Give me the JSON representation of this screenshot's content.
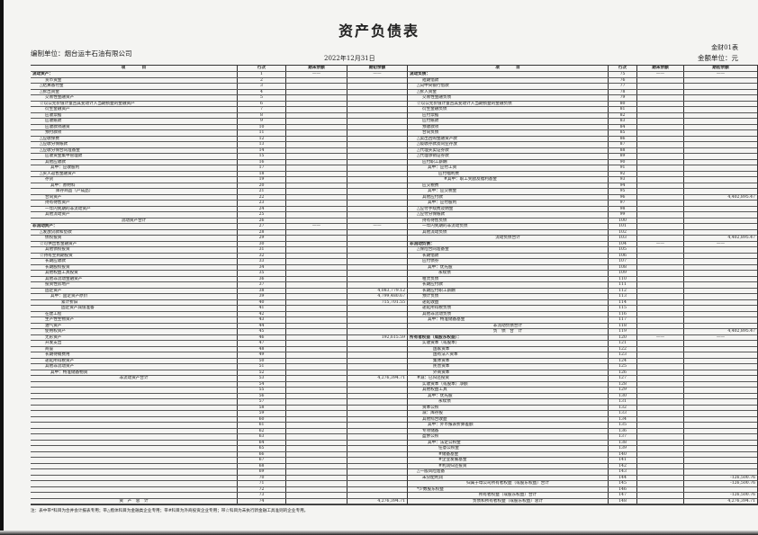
{
  "header": {
    "title": "资产负债表",
    "unit": "编制单位：烟台运丰石油有限公司",
    "date": "2022年12月31日",
    "form_no": "金财01表",
    "money_unit": "金额单位：元"
  },
  "columns": {
    "item": "项　　　　目",
    "row_no": "行次",
    "end": "期末余额",
    "begin": "期初余额"
  },
  "left_rows": [
    {
      "no": "1",
      "label": "流动资产：",
      "level": 0,
      "end": "——",
      "begin": "——"
    },
    {
      "no": "2",
      "label": "货币资金",
      "level": 2
    },
    {
      "no": "3",
      "label": "△结算备付金",
      "level": 1
    },
    {
      "no": "4",
      "label": "△拆出资金",
      "level": 1
    },
    {
      "no": "5",
      "label": "交易性金融资产",
      "level": 2
    },
    {
      "no": "6",
      "label": "☆以公允价值计量且其变动计入当期损益的金融资产",
      "level": 1
    },
    {
      "no": "7",
      "label": "衍生金融资产",
      "level": 2
    },
    {
      "no": "8",
      "label": "应收票据",
      "level": 2
    },
    {
      "no": "9",
      "label": "应收账款",
      "level": 2
    },
    {
      "no": "10",
      "label": "应收款项融资",
      "level": 2
    },
    {
      "no": "11",
      "label": "预付款项",
      "level": 2
    },
    {
      "no": "12",
      "label": "△应收保费",
      "level": 1
    },
    {
      "no": "13",
      "label": "△应收分保账款",
      "level": 1
    },
    {
      "no": "14",
      "label": "△应收分保合同准备金",
      "level": 1
    },
    {
      "no": "15",
      "label": "应收资金集中管理款",
      "level": 2
    },
    {
      "no": "16",
      "label": "其他应收款",
      "level": 2
    },
    {
      "no": "17",
      "label": "其中：应收股利",
      "level": 3
    },
    {
      "no": "18",
      "label": "△买入返售金融资产",
      "level": 1
    },
    {
      "no": "19",
      "label": "存货",
      "level": 2
    },
    {
      "no": "20",
      "label": "其中：原材料",
      "level": 3
    },
    {
      "no": "21",
      "label": "库存商品（产成品）",
      "level": 4
    },
    {
      "no": "22",
      "label": "合同资产",
      "level": 2
    },
    {
      "no": "23",
      "label": "持有待售资产",
      "level": 2
    },
    {
      "no": "24",
      "label": "一年内到期的非流动资产",
      "level": 2
    },
    {
      "no": "25",
      "label": "其他流动资产",
      "level": 2
    },
    {
      "no": "26",
      "label": "流动资产合计",
      "level": "c"
    },
    {
      "no": "27",
      "label": "非流动资产：",
      "level": 0,
      "end": "——",
      "begin": "——"
    },
    {
      "no": "28",
      "label": "△发放贷款和垫款",
      "level": 1
    },
    {
      "no": "29",
      "label": "债权投资",
      "level": 2
    },
    {
      "no": "30",
      "label": "☆可供出售金融资产",
      "level": 1
    },
    {
      "no": "31",
      "label": "其他债权投资",
      "level": 2
    },
    {
      "no": "32",
      "label": "☆持有至到期投资",
      "level": 1
    },
    {
      "no": "33",
      "label": "长期应收款",
      "level": 2
    },
    {
      "no": "34",
      "label": "长期股权投资",
      "level": 2
    },
    {
      "no": "35",
      "label": "其他权益工具投资",
      "level": 2
    },
    {
      "no": "36",
      "label": "其他非流动金融资产",
      "level": 2
    },
    {
      "no": "37",
      "label": "投资性房地产",
      "level": 2
    },
    {
      "no": "38",
      "label": "固定资产",
      "level": 2,
      "begin": "4,083,779.12"
    },
    {
      "no": "39",
      "label": "其中：固定资产原价",
      "level": 3,
      "begin": "4,799,480.67"
    },
    {
      "no": "40",
      "label": "累计折旧",
      "level": 5,
      "begin": "715,701.55"
    },
    {
      "no": "41",
      "label": "固定资产减值准备",
      "level": 5
    },
    {
      "no": "42",
      "label": "在建工程",
      "level": 2
    },
    {
      "no": "43",
      "label": "生产性生物资产",
      "level": 2
    },
    {
      "no": "44",
      "label": "油气资产",
      "level": 2
    },
    {
      "no": "45",
      "label": "使用权资产",
      "level": 2
    },
    {
      "no": "46",
      "label": "无形资产",
      "level": 2,
      "begin": "192,615.59"
    },
    {
      "no": "47",
      "label": "开发支出",
      "level": 2
    },
    {
      "no": "48",
      "label": "商誉",
      "level": 2
    },
    {
      "no": "49",
      "label": "长期待摊费用",
      "level": 2
    },
    {
      "no": "50",
      "label": "递延所得税资产",
      "level": 2
    },
    {
      "no": "51",
      "label": "其他非流动资产",
      "level": 2
    },
    {
      "no": "52",
      "label": "其中：特准储备物资",
      "level": 3
    },
    {
      "no": "53",
      "label": "非流动资产合计",
      "level": "c",
      "begin": "4,276,394.71"
    },
    {
      "no": "54",
      "label": ""
    },
    {
      "no": "55",
      "label": ""
    },
    {
      "no": "56",
      "label": ""
    },
    {
      "no": "57",
      "label": ""
    },
    {
      "no": "58",
      "label": ""
    },
    {
      "no": "59",
      "label": ""
    },
    {
      "no": "60",
      "label": ""
    },
    {
      "no": "61",
      "label": ""
    },
    {
      "no": "62",
      "label": ""
    },
    {
      "no": "63",
      "label": ""
    },
    {
      "no": "64",
      "label": ""
    },
    {
      "no": "65",
      "label": ""
    },
    {
      "no": "66",
      "label": ""
    },
    {
      "no": "67",
      "label": ""
    },
    {
      "no": "68",
      "label": ""
    },
    {
      "no": "69",
      "label": ""
    },
    {
      "no": "70",
      "label": ""
    },
    {
      "no": "71",
      "label": ""
    },
    {
      "no": "72",
      "label": ""
    },
    {
      "no": "73",
      "label": ""
    },
    {
      "no": "74",
      "label": "资　产　总　计",
      "level": "c",
      "begin": "4,276,394.71"
    }
  ],
  "right_rows": [
    {
      "no": "75",
      "label": "流动负债：",
      "level": 0,
      "end": "——",
      "begin": "——"
    },
    {
      "no": "76",
      "label": "短期借款",
      "level": 2
    },
    {
      "no": "77",
      "label": "△向中央银行借款",
      "level": 1
    },
    {
      "no": "78",
      "label": "△拆入资金",
      "level": 1
    },
    {
      "no": "79",
      "label": "交易性金融负债",
      "level": 2
    },
    {
      "no": "80",
      "label": "☆以公允价值计量且其变动计入当期损益的金融负债",
      "level": 1
    },
    {
      "no": "81",
      "label": "衍生金融负债",
      "level": 2
    },
    {
      "no": "82",
      "label": "应付票据",
      "level": 2
    },
    {
      "no": "83",
      "label": "应付账款",
      "level": 2
    },
    {
      "no": "84",
      "label": "预收款项",
      "level": 2
    },
    {
      "no": "85",
      "label": "合同负债",
      "level": 2
    },
    {
      "no": "86",
      "label": "△卖出回购金融资产款",
      "level": 1
    },
    {
      "no": "87",
      "label": "△吸收存款及同业存放",
      "level": 1
    },
    {
      "no": "88",
      "label": "△代理买卖证券款",
      "level": 1
    },
    {
      "no": "89",
      "label": "△代理承销证券款",
      "level": 1
    },
    {
      "no": "90",
      "label": "应付职工薪酬",
      "level": 2
    },
    {
      "no": "91",
      "label": "其中：应付工资",
      "level": 3
    },
    {
      "no": "92",
      "label": "应付福利费",
      "level": 5
    },
    {
      "no": "93",
      "label": "#其中：职工奖励及福利基金",
      "level": 6
    },
    {
      "no": "94",
      "label": "应交税费",
      "level": 2
    },
    {
      "no": "95",
      "label": "其中：应交税金",
      "level": 3
    },
    {
      "no": "96",
      "label": "其他应付款",
      "level": 2,
      "begin": "4,402,895.47"
    },
    {
      "no": "97",
      "label": "其中：应付股利",
      "level": 3
    },
    {
      "no": "98",
      "label": "△应付手续费及佣金",
      "level": 1
    },
    {
      "no": "99",
      "label": "△应付分保账款",
      "level": 1
    },
    {
      "no": "100",
      "label": "持有待售负债",
      "level": 2
    },
    {
      "no": "101",
      "label": "一年内到期的非流动负债",
      "level": 2
    },
    {
      "no": "102",
      "label": "其他流动负债",
      "level": 2
    },
    {
      "no": "103",
      "label": "流动负债合计",
      "level": "c",
      "begin": "4,402,895.47"
    },
    {
      "no": "104",
      "label": "非流动负债：",
      "level": 0,
      "end": "——",
      "begin": "——"
    },
    {
      "no": "105",
      "label": "△保险合同准备金",
      "level": 1
    },
    {
      "no": "106",
      "label": "长期借款",
      "level": 2
    },
    {
      "no": "107",
      "label": "应付债券",
      "level": 2
    },
    {
      "no": "108",
      "label": "其中：优先股",
      "level": 3
    },
    {
      "no": "109",
      "label": "永续债",
      "level": 5
    },
    {
      "no": "110",
      "label": "租赁负债",
      "level": 2
    },
    {
      "no": "111",
      "label": "长期应付款",
      "level": 2
    },
    {
      "no": "112",
      "label": "长期应付职工薪酬",
      "level": 2
    },
    {
      "no": "113",
      "label": "预计负债",
      "level": 2
    },
    {
      "no": "114",
      "label": "递延收益",
      "level": 2
    },
    {
      "no": "115",
      "label": "递延所得税负债",
      "level": 2
    },
    {
      "no": "116",
      "label": "其他非流动负债",
      "level": 2
    },
    {
      "no": "117",
      "label": "其中：特准储备基金",
      "level": 3
    },
    {
      "no": "118",
      "label": "非流动负债合计",
      "level": "c"
    },
    {
      "no": "119",
      "label": "负　债　合　计",
      "level": "c",
      "begin": "4,402,895.47"
    },
    {
      "no": "120",
      "label": "所有者权益（或股东权益）：",
      "level": 0,
      "end": "——",
      "begin": "——"
    },
    {
      "no": "121",
      "label": "实收资本（或股本）",
      "level": 2
    },
    {
      "no": "122",
      "label": "国家资本",
      "level": 4
    },
    {
      "no": "123",
      "label": "国有法人资本",
      "level": 4
    },
    {
      "no": "124",
      "label": "集体资本",
      "level": 4
    },
    {
      "no": "125",
      "label": "民营资本",
      "level": 4
    },
    {
      "no": "126",
      "label": "外商资本",
      "level": 4
    },
    {
      "no": "127",
      "label": "#减：已归还投资",
      "level": 1
    },
    {
      "no": "128",
      "label": "实收资本（或股本）净额",
      "level": 2
    },
    {
      "no": "129",
      "label": "其他权益工具",
      "level": 2
    },
    {
      "no": "130",
      "label": "其中：优先股",
      "level": 3
    },
    {
      "no": "131",
      "label": "永续债",
      "level": 5
    },
    {
      "no": "132",
      "label": "资本公积",
      "level": 2
    },
    {
      "no": "133",
      "label": "减：库存股",
      "level": 2
    },
    {
      "no": "134",
      "label": "其他综合收益",
      "level": 2
    },
    {
      "no": "135",
      "label": "其中：外币报表折算差额",
      "level": 3
    },
    {
      "no": "136",
      "label": "专项储备",
      "level": 2
    },
    {
      "no": "137",
      "label": "盈余公积",
      "level": 2
    },
    {
      "no": "138",
      "label": "其中：法定公积金",
      "level": 3
    },
    {
      "no": "139",
      "label": "任意公积金",
      "level": 5
    },
    {
      "no": "140",
      "label": "#储备基金",
      "level": 5
    },
    {
      "no": "141",
      "label": "#企业发展基金",
      "level": 5
    },
    {
      "no": "142",
      "label": "#利润归还投资",
      "level": 5
    },
    {
      "no": "143",
      "label": "△一般风险准备",
      "level": 1
    },
    {
      "no": "144",
      "label": "未分配利润",
      "level": 2,
      "begin": "-126,500.76"
    },
    {
      "no": "145",
      "label": "归属于母公司所有者权益（或股东权益）合计",
      "level": "c",
      "begin": "-126,500.76"
    },
    {
      "no": "146",
      "label": "*少数股东权益",
      "level": 1
    },
    {
      "no": "147",
      "label": "所有者权益（或股东权益）合计",
      "level": "c",
      "begin": "-126,500.76"
    },
    {
      "no": "148",
      "label": "负债和所有者权益（或股东权益）总计",
      "level": "c",
      "begin": "4,276,394.71"
    }
  ],
  "footer_note": "注：表中带*科目为合并会计报表专用；带△楷体科目为金融类企业专用；带#科目为外商投资企业专用；带☆科目为未执行新金融工具准则的企业专用。"
}
